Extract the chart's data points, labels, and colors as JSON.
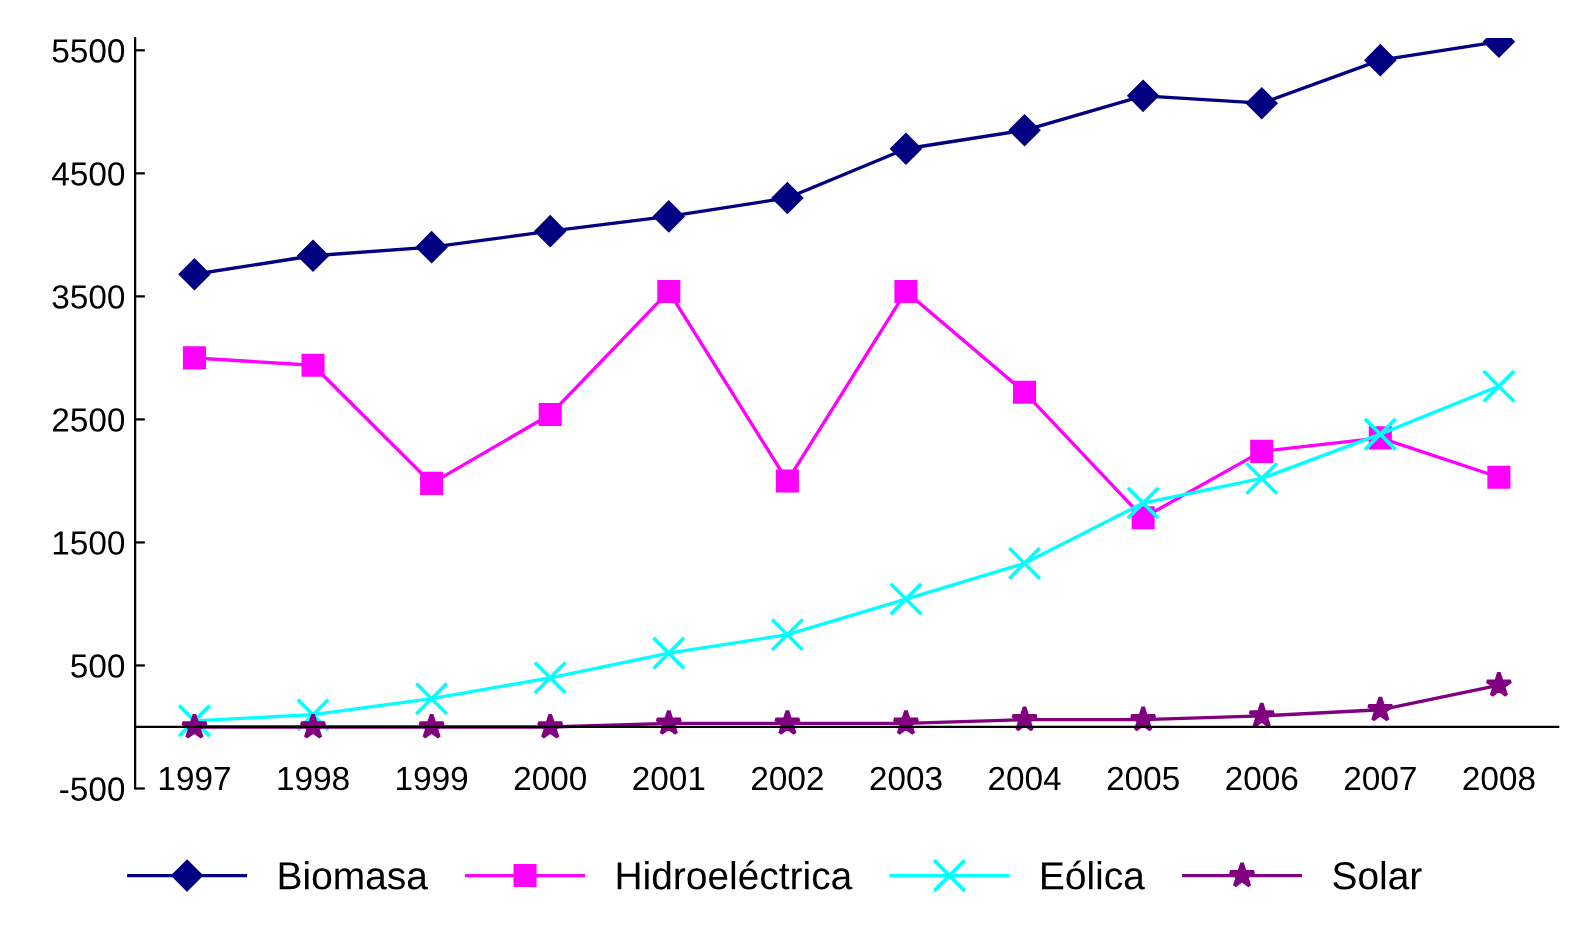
{
  "chart_data": {
    "type": "line",
    "categories": [
      "1997",
      "1998",
      "1999",
      "2000",
      "2001",
      "2002",
      "2003",
      "2004",
      "2005",
      "2006",
      "2007",
      "2008"
    ],
    "ylim": [
      -500,
      5600
    ],
    "yticks": [
      -500,
      500,
      1500,
      2500,
      3500,
      4500,
      5500
    ],
    "grid": false,
    "legend": "bottom",
    "series": [
      {
        "name": "Biomasa",
        "color": "#000080",
        "marker": "diamond",
        "values": [
          3680,
          3830,
          3900,
          4030,
          4150,
          4300,
          4700,
          4850,
          5130,
          5070,
          5420,
          5570
        ]
      },
      {
        "name": "Hidroeléctrica",
        "color": "#ff00ff",
        "marker": "square",
        "values": [
          3000,
          2940,
          1980,
          2540,
          3540,
          2000,
          3540,
          2720,
          1700,
          2240,
          2350,
          2030
        ]
      },
      {
        "name": "Eólica",
        "color": "#00ffff",
        "marker": "cross",
        "values": [
          50,
          100,
          230,
          400,
          600,
          750,
          1040,
          1330,
          1820,
          2020,
          2380,
          2770
        ]
      },
      {
        "name": "Solar",
        "color": "#800080",
        "marker": "star",
        "values": [
          0,
          0,
          0,
          0,
          30,
          30,
          30,
          60,
          60,
          90,
          140,
          340
        ]
      }
    ]
  }
}
